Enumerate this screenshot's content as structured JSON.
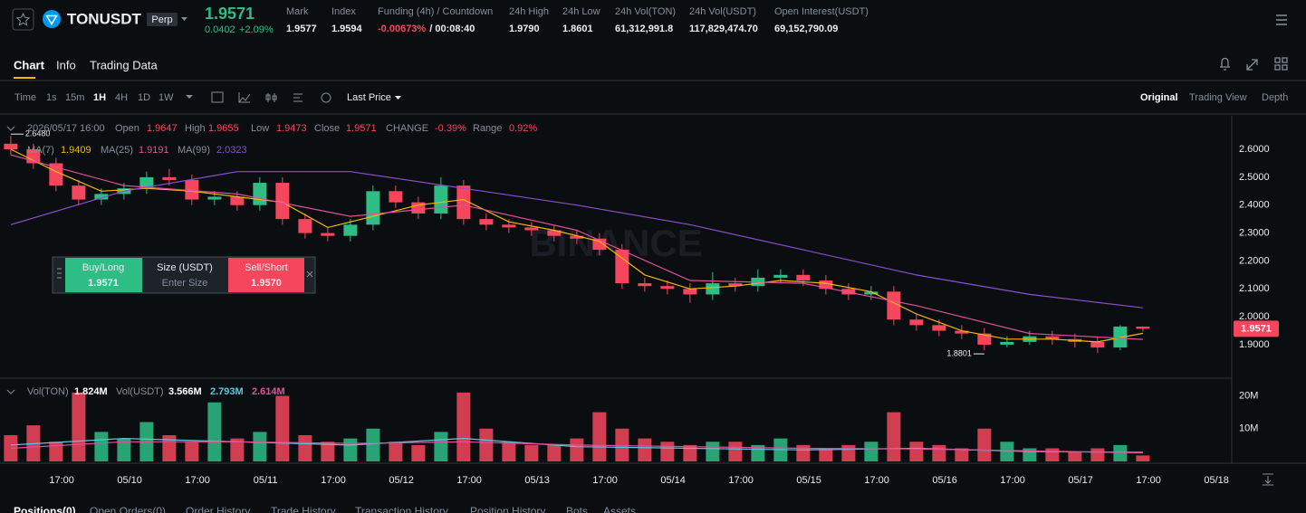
{
  "header": {
    "symbol": "TONUSDT",
    "badge": "Perp",
    "price": "1.9571",
    "change": "0.0402",
    "change_pct": "+2.09%",
    "stats": [
      {
        "label": "Mark",
        "value": "1.9577"
      },
      {
        "label": "Index",
        "value": "1.9594"
      },
      {
        "label": "Funding (4h) / Countdown",
        "value": "-0.00673%",
        "extra": "/ 00:08:40"
      },
      {
        "label": "24h High",
        "value": "1.9790"
      },
      {
        "label": "24h Low",
        "value": "1.8601"
      },
      {
        "label": "24h Vol(TON)",
        "value": "61,312,991.8"
      },
      {
        "label": "24h Vol(USDT)",
        "value": "117,829,474.70"
      },
      {
        "label": "Open Interest(USDT)",
        "value": "69,152,790.09"
      }
    ]
  },
  "tabs": [
    "Chart",
    "Info",
    "Trading Data"
  ],
  "toolbar": {
    "intervals": [
      "Time",
      "1s",
      "15m",
      "1H",
      "4H",
      "1D",
      "1W"
    ],
    "price_type": "Last Price",
    "views": [
      "Original",
      "Trading View",
      "Depth"
    ]
  },
  "ohlc_bar": {
    "date": "2026/05/17 16:00",
    "items": [
      {
        "label": "Open",
        "value": "1.9647"
      },
      {
        "label": "High",
        "value": "1.9655"
      },
      {
        "label": "Low",
        "value": "1.9473"
      },
      {
        "label": "Close",
        "value": "1.9571"
      },
      {
        "label": "CHANGE",
        "value": "-0.39%"
      },
      {
        "label": "Range",
        "value": "0.92%"
      }
    ]
  },
  "order_widget": {
    "buy": "Buy/Long",
    "buy_price": "1.9571",
    "size_label": "Size (USDT)",
    "size_placeholder": "Enter Size",
    "sell": "Sell/Short",
    "sell_price": "1.9570"
  },
  "vol_legend": [
    {
      "label": "Vol(TON)",
      "value": "1.824M"
    },
    {
      "label": "Vol(USDT)",
      "value": "3.566M"
    },
    {
      "value": "2.793M"
    },
    {
      "value": "2.614M"
    }
  ],
  "watermark": "BINANCE",
  "chart_data": {
    "type": "candlestick",
    "up_color": "#2ebd85",
    "down_color": "#f6465d",
    "x": [
      0,
      4,
      8,
      12,
      16,
      20,
      24,
      28,
      32,
      36,
      40,
      44,
      48,
      52,
      56,
      60,
      64,
      68,
      72,
      76,
      80,
      84,
      88,
      92,
      96,
      100,
      104,
      108,
      112,
      116,
      120,
      124,
      128,
      132,
      136,
      140,
      144,
      148,
      152,
      156,
      160,
      164,
      168,
      172,
      176,
      180,
      184,
      188,
      192,
      196,
      200
    ],
    "candles": [
      [
        2.62,
        2.648,
        2.58,
        2.6
      ],
      [
        2.6,
        2.62,
        2.53,
        2.55
      ],
      [
        2.55,
        2.57,
        2.45,
        2.47
      ],
      [
        2.47,
        2.49,
        2.4,
        2.42
      ],
      [
        2.42,
        2.46,
        2.4,
        2.44
      ],
      [
        2.44,
        2.48,
        2.42,
        2.46
      ],
      [
        2.46,
        2.52,
        2.44,
        2.5
      ],
      [
        2.5,
        2.53,
        2.47,
        2.49
      ],
      [
        2.49,
        2.51,
        2.4,
        2.42
      ],
      [
        2.42,
        2.45,
        2.4,
        2.43
      ],
      [
        2.43,
        2.45,
        2.38,
        2.4
      ],
      [
        2.4,
        2.5,
        2.38,
        2.48
      ],
      [
        2.48,
        2.5,
        2.33,
        2.35
      ],
      [
        2.35,
        2.37,
        2.28,
        2.3
      ],
      [
        2.3,
        2.32,
        2.27,
        2.29
      ],
      [
        2.29,
        2.35,
        2.27,
        2.33
      ],
      [
        2.33,
        2.47,
        2.31,
        2.45
      ],
      [
        2.45,
        2.47,
        2.39,
        2.41
      ],
      [
        2.41,
        2.43,
        2.35,
        2.37
      ],
      [
        2.37,
        2.5,
        2.35,
        2.47
      ],
      [
        2.47,
        2.49,
        2.33,
        2.35
      ],
      [
        2.35,
        2.37,
        2.31,
        2.33
      ],
      [
        2.33,
        2.35,
        2.3,
        2.32
      ],
      [
        2.32,
        2.34,
        2.29,
        2.31
      ],
      [
        2.31,
        2.33,
        2.27,
        2.29
      ],
      [
        2.29,
        2.31,
        2.26,
        2.28
      ],
      [
        2.28,
        2.3,
        2.22,
        2.24
      ],
      [
        2.24,
        2.26,
        2.1,
        2.12
      ],
      [
        2.12,
        2.14,
        2.09,
        2.11
      ],
      [
        2.11,
        2.13,
        2.08,
        2.1
      ],
      [
        2.1,
        2.12,
        2.05,
        2.08
      ],
      [
        2.08,
        2.16,
        2.06,
        2.12
      ],
      [
        2.12,
        2.14,
        2.09,
        2.11
      ],
      [
        2.11,
        2.17,
        2.09,
        2.14
      ],
      [
        2.14,
        2.17,
        2.12,
        2.15
      ],
      [
        2.15,
        2.17,
        2.11,
        2.13
      ],
      [
        2.13,
        2.15,
        2.08,
        2.1
      ],
      [
        2.1,
        2.12,
        2.06,
        2.08
      ],
      [
        2.08,
        2.11,
        2.06,
        2.09
      ],
      [
        2.09,
        2.11,
        1.97,
        1.99
      ],
      [
        1.99,
        2.01,
        1.95,
        1.97
      ],
      [
        1.97,
        1.99,
        1.93,
        1.95
      ],
      [
        1.95,
        1.97,
        1.92,
        1.94
      ],
      [
        1.94,
        1.96,
        1.8801,
        1.9
      ],
      [
        1.9,
        1.93,
        1.89,
        1.91
      ],
      [
        1.91,
        1.95,
        1.9,
        1.93
      ],
      [
        1.93,
        1.95,
        1.9,
        1.92
      ],
      [
        1.92,
        1.94,
        1.89,
        1.91
      ],
      [
        1.91,
        1.93,
        1.87,
        1.89
      ],
      [
        1.89,
        1.97,
        1.88,
        1.965
      ],
      [
        1.9647,
        1.9655,
        1.9473,
        1.9571
      ]
    ],
    "ylim": [
      1.78,
      2.72
    ],
    "yticks": [
      {
        "value": 1.9,
        "label": "1.9000"
      },
      {
        "value": 2.0,
        "label": "2.0000"
      },
      {
        "value": 2.1,
        "label": "2.1000"
      },
      {
        "value": 2.2,
        "label": "2.2000"
      },
      {
        "value": 2.3,
        "label": "2.3000"
      },
      {
        "value": 2.4,
        "label": "2.4000"
      },
      {
        "value": 2.5,
        "label": "2.5000"
      },
      {
        "value": 2.6,
        "label": "2.6000"
      }
    ],
    "xlim": [
      -1.9,
      215.7
    ],
    "xticks": [
      {
        "value": 9,
        "label": "17:00"
      },
      {
        "value": 21,
        "label": "05/10"
      },
      {
        "value": 33,
        "label": "17:00"
      },
      {
        "value": 45,
        "label": "05/11"
      },
      {
        "value": 57,
        "label": "17:00"
      },
      {
        "value": 69,
        "label": "05/12"
      },
      {
        "value": 81,
        "label": "17:00"
      },
      {
        "value": 93,
        "label": "05/13"
      },
      {
        "value": 105,
        "label": "17:00"
      },
      {
        "value": 117,
        "label": "05/14"
      },
      {
        "value": 129,
        "label": "17:00"
      },
      {
        "value": 141,
        "label": "05/15"
      },
      {
        "value": 153,
        "label": "17:00"
      },
      {
        "value": 165,
        "label": "05/16"
      },
      {
        "value": 177,
        "label": "17:00"
      },
      {
        "value": 189,
        "label": "05/17"
      },
      {
        "value": 201,
        "label": "17:00"
      },
      {
        "value": 213,
        "label": "05/18"
      }
    ],
    "ma": [
      {
        "name": "MA(7)",
        "legend_value": "1.9409",
        "color": "#f0b90b",
        "x": [
          0,
          8,
          16,
          24,
          32,
          40,
          48,
          56,
          64,
          72,
          80,
          88,
          96,
          104,
          112,
          120,
          128,
          136,
          144,
          152,
          160,
          168,
          176,
          184,
          192,
          200
        ],
        "values": [
          2.6,
          2.52,
          2.45,
          2.46,
          2.45,
          2.43,
          2.41,
          2.32,
          2.36,
          2.4,
          2.42,
          2.34,
          2.31,
          2.27,
          2.15,
          2.1,
          2.11,
          2.13,
          2.12,
          2.09,
          2.01,
          1.95,
          1.92,
          1.92,
          1.91,
          1.9409
        ]
      },
      {
        "name": "MA(25)",
        "legend_value": "1.9191",
        "color": "#e0509b",
        "x": [
          0,
          20,
          40,
          60,
          80,
          100,
          120,
          140,
          160,
          180,
          200
        ],
        "values": [
          2.58,
          2.47,
          2.44,
          2.36,
          2.4,
          2.31,
          2.13,
          2.12,
          2.04,
          1.94,
          1.9191
        ]
      },
      {
        "name": "MA(99)",
        "legend_value": "2.0323",
        "color": "#8a4fd0",
        "x": [
          0,
          20,
          40,
          60,
          80,
          100,
          120,
          140,
          160,
          180,
          200
        ],
        "values": [
          2.33,
          2.45,
          2.52,
          2.52,
          2.46,
          2.4,
          2.33,
          2.24,
          2.15,
          2.08,
          2.0323
        ]
      }
    ],
    "last_price": 1.9571,
    "annotations": [
      {
        "candle": 0,
        "value": 2.648,
        "label": "2.6480"
      },
      {
        "candle": 43,
        "value": 1.8801
      }
    ],
    "volume": {
      "values": [
        8000000,
        11000000,
        6000000,
        21000000,
        9000000,
        7000000,
        12000000,
        8000000,
        6000000,
        18000000,
        7000000,
        9000000,
        20000000,
        8000000,
        6000000,
        7000000,
        10000000,
        6000000,
        5000000,
        9000000,
        21000000,
        10000000,
        6000000,
        5000000,
        5000000,
        7000000,
        15000000,
        10000000,
        7000000,
        6000000,
        5000000,
        6000000,
        6000000,
        5000000,
        7000000,
        5000000,
        4000000,
        5000000,
        6000000,
        15000000,
        6000000,
        5000000,
        4000000,
        10000000,
        6000000,
        4000000,
        4000000,
        3000000,
        4000000,
        5000000,
        1824000
      ],
      "ylim": [
        0,
        24000000
      ],
      "yticks": [
        {
          "value": 10000000,
          "label": "10M"
        },
        {
          "value": 20000000,
          "label": "20M"
        }
      ],
      "ma": [
        {
          "color": "#5ec4e0",
          "x": [
            0,
            20,
            40,
            60,
            80,
            100,
            120,
            140,
            160,
            180,
            200
          ],
          "values": [
            5000000,
            7000000,
            6000000,
            5000000,
            7000000,
            4500000,
            4000000,
            3500000,
            4000000,
            3000000,
            2793000
          ]
        },
        {
          "color": "#e0509b",
          "x": [
            0,
            20,
            40,
            60,
            80,
            100,
            120,
            140,
            160,
            180,
            200
          ],
          "values": [
            4000000,
            6000000,
            6000000,
            5500000,
            6000000,
            5000000,
            4500000,
            4000000,
            3800000,
            3200000,
            2614000
          ]
        }
      ]
    }
  },
  "bottom_tabs": [
    "Positions(0)",
    "Open Orders(0)",
    "Order History",
    "Trade History",
    "Transaction History",
    "Position History",
    "Bots",
    "Assets"
  ]
}
